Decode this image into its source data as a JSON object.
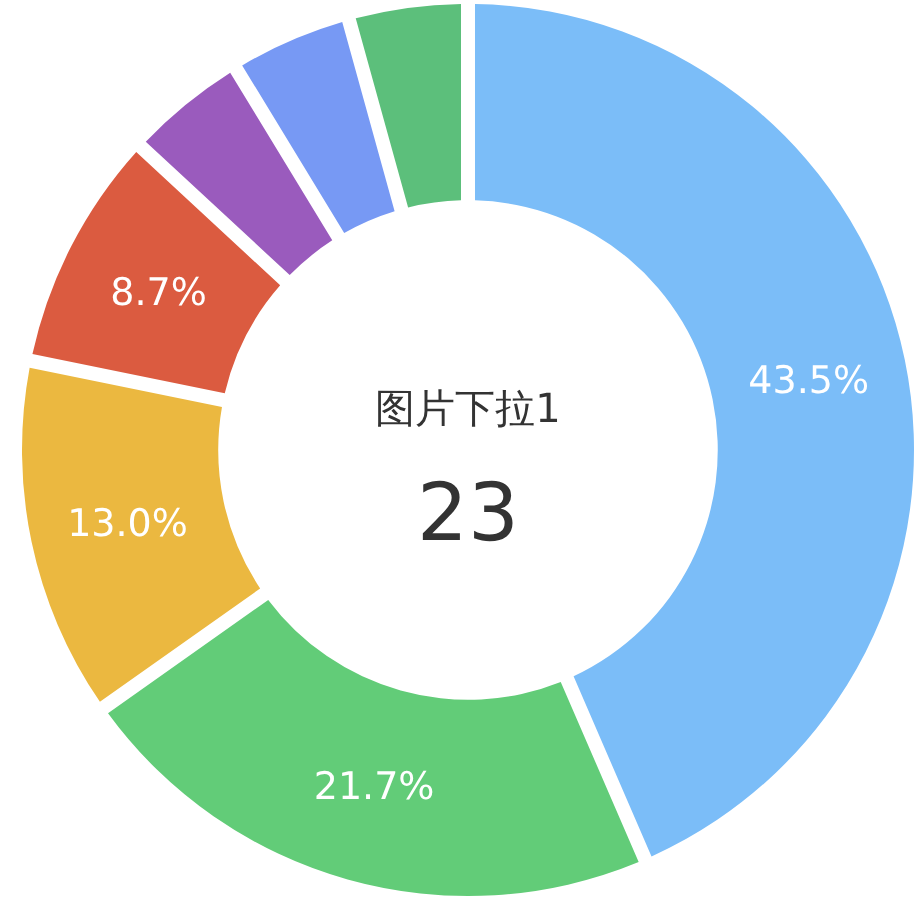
{
  "chart_data": {
    "type": "donut",
    "title": "图片下拉1",
    "subtitle": "23",
    "categories": [
      null,
      null,
      null,
      null,
      null,
      null,
      null
    ],
    "values": [
      43.5,
      21.7,
      13.0,
      8.7,
      4.4,
      4.4,
      4.3
    ],
    "value_labels": [
      "43.5%",
      "21.7%",
      "13.0%",
      "8.7%",
      null,
      null,
      null
    ],
    "colors": [
      "#7bbdf8",
      "#62cc78",
      "#ebb840",
      "#db5b40",
      "#9a5bbd",
      "#7799f4",
      "#5cbf7b"
    ]
  }
}
